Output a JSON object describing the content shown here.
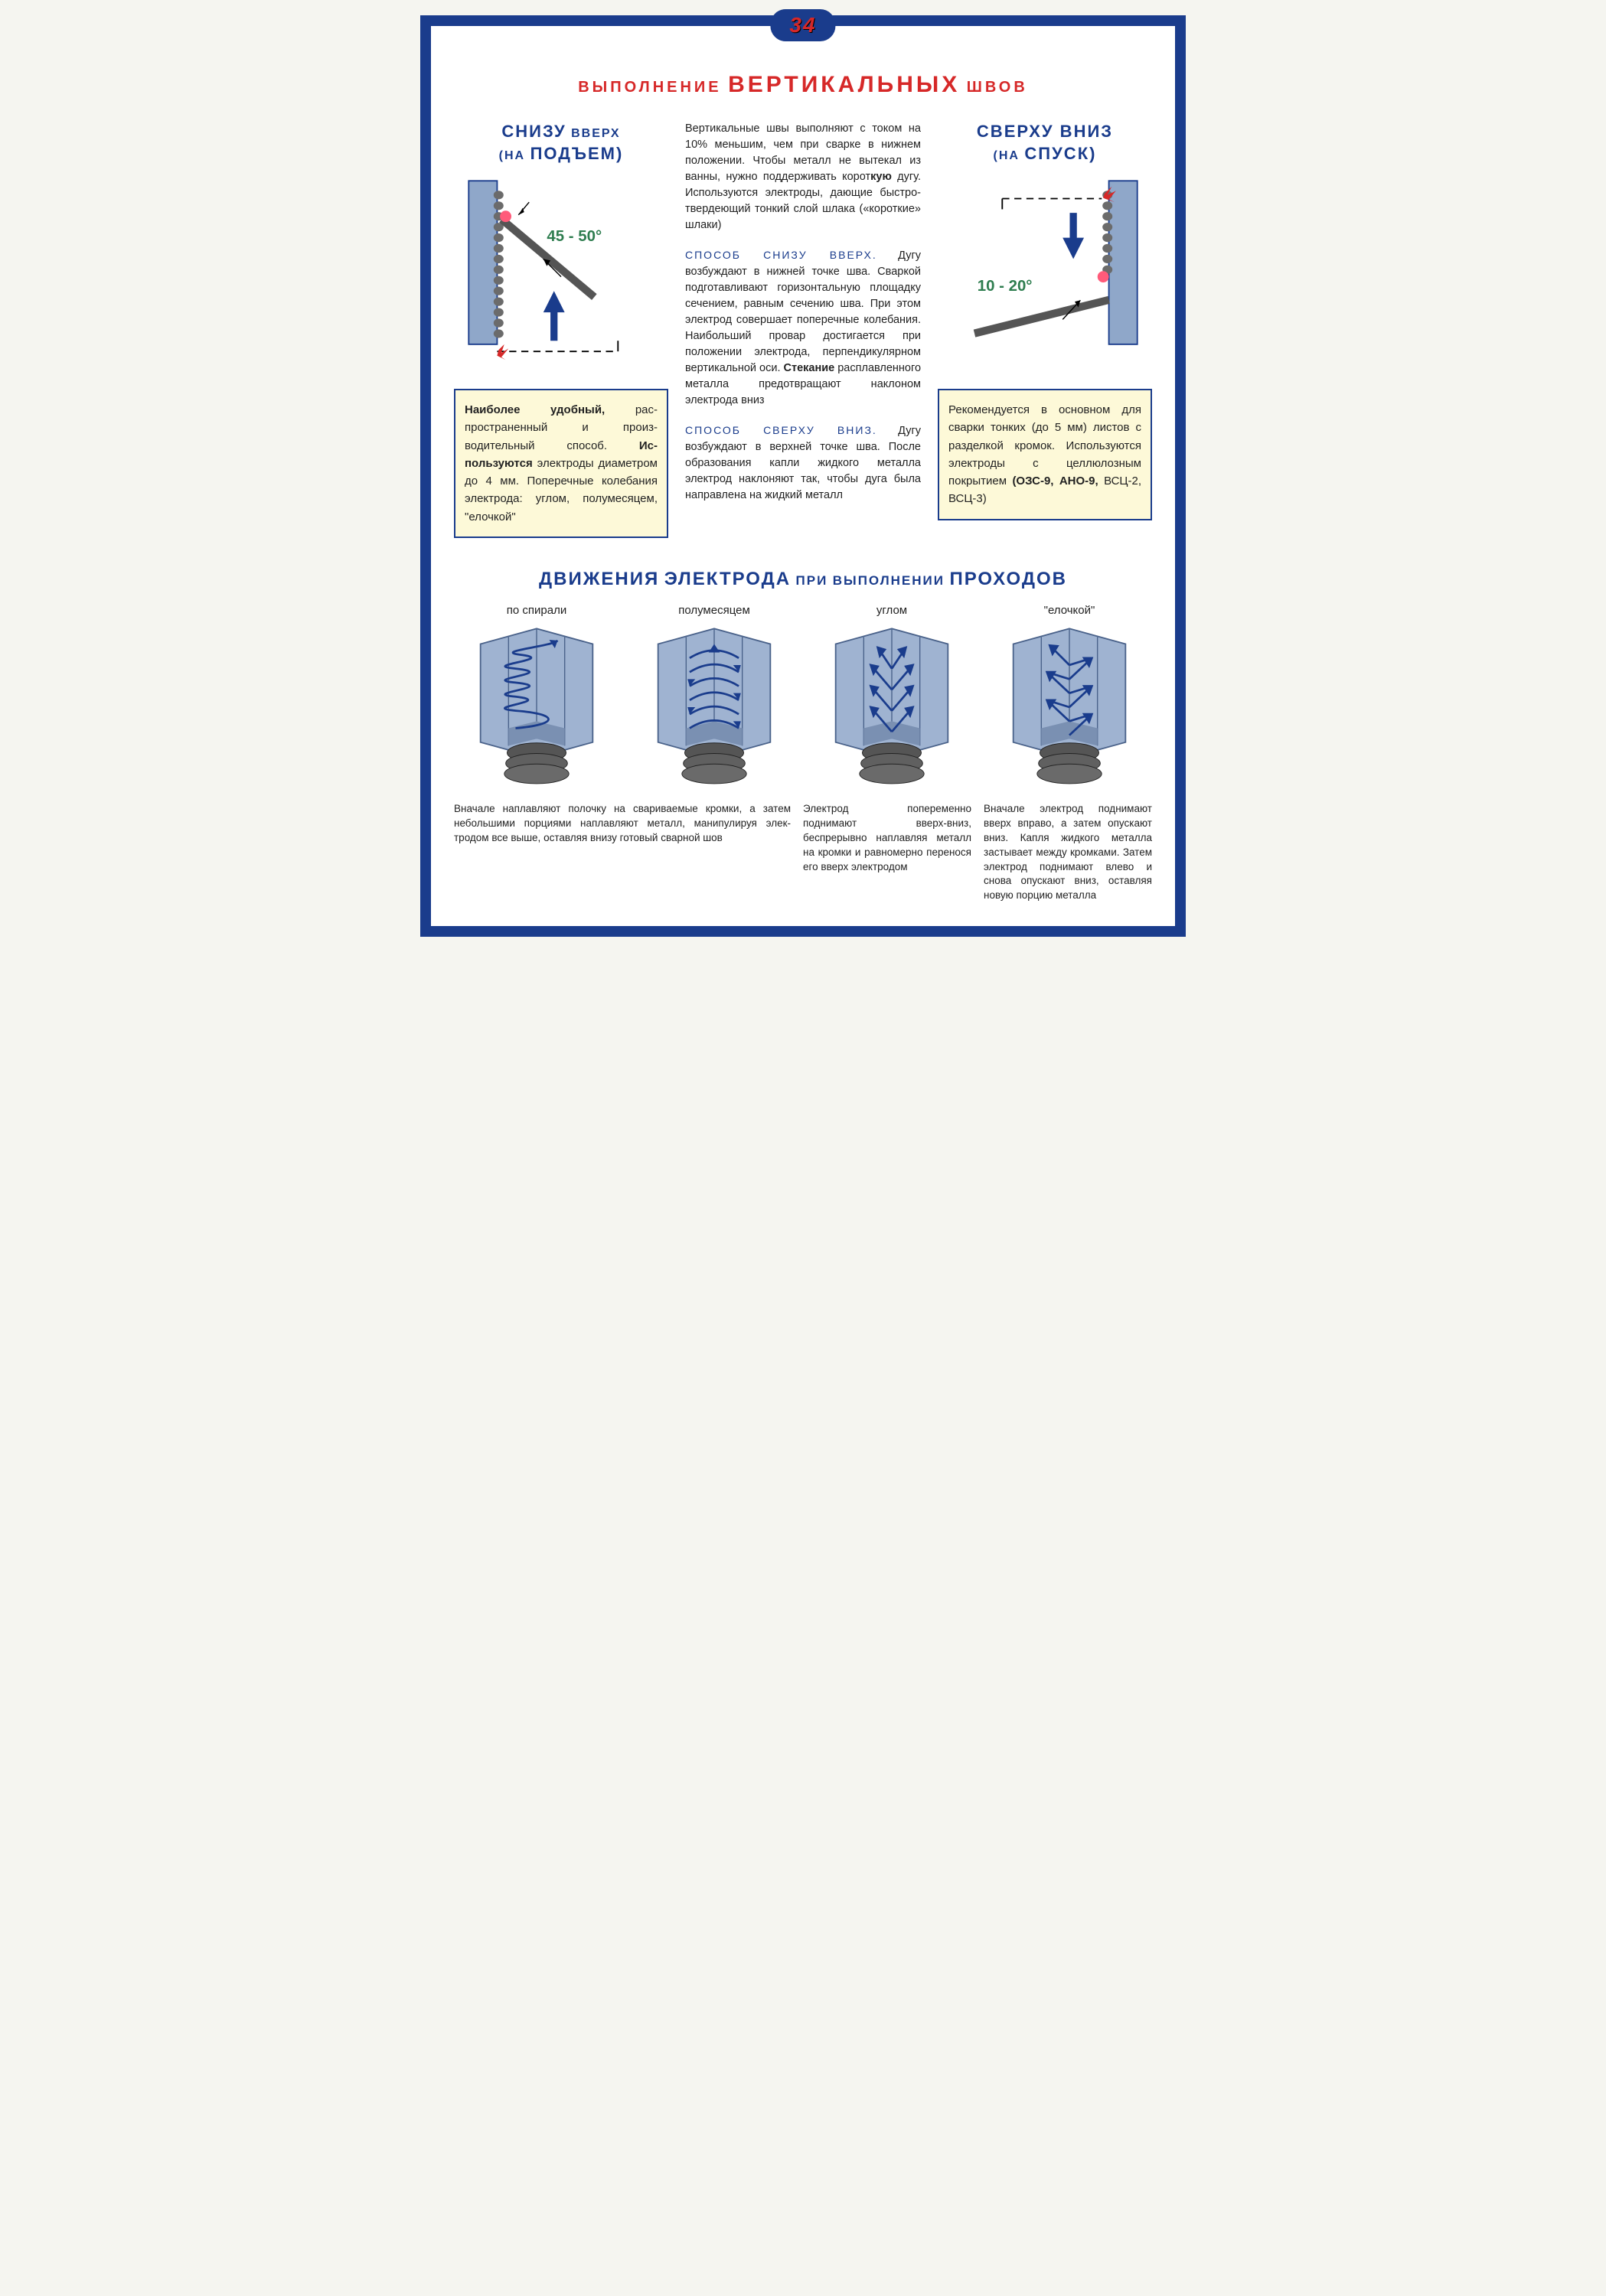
{
  "page_number": "34",
  "title": {
    "w1": "ВЫПОЛНЕНИЕ",
    "w2": "ВЕРТИКАЛЬНЫХ",
    "w3": "ШВОВ"
  },
  "colors": {
    "frame": "#1a3c8c",
    "accent_red": "#d62828",
    "box_bg": "#fdf9d8",
    "steel": "#8fa7c9",
    "steel_dark": "#5a7296",
    "angle_text": "#2e7d4f"
  },
  "left": {
    "heading_l1a": "СНИЗУ",
    "heading_l1b": "ВВЕРХ",
    "heading_l2a": "(НА",
    "heading_l2b": "ПОДЪЕМ)",
    "angle": "45 - 50°",
    "box_html": "<b>Наиболее удобный,</b> рас­пространенный и произ­водительный способ. <b>Ис­пользуются</b> электроды диаметром до 4 мм. По­перечные колебания электрода: углом, полу­месяцем, \"елочкой\""
  },
  "right": {
    "heading_l1": "СВЕРХУ ВНИЗ",
    "heading_l2a": "(НА",
    "heading_l2b": "СПУСК)",
    "angle": "10 - 20°",
    "box_html": "Рекомендуется в основ­ном для сварки тонких (до 5 мм) листов с раз­делкой кромок. Исполь­зуются электроды с цел­люлозным покрытием <b>(ОЗС-9, АНО-9,</b> ВСЦ-2, ВСЦ-3)"
  },
  "center": {
    "p1": "Вертикальные швы выпол­няют с током на 10% мень­шим, чем при сварке в ниж­нем положении. Чтобы ме­талл не вытекал из ванны, нужно поддерживать корот­<b>кую</b> дугу. Используются электроды, дающие быстро­твердеющий тонкий слой шлака («короткие» шлаки)",
    "p2_lead": "СПОСОБ СНИЗУ ВВЕРХ.",
    "p2": "Дугу возбуждают в нижней точке шва. Сваркой подго­тавливают горизонтальную площадку сечением, равным сечению шва. При этом электрод совершает попе­речные колебания. Наиболь­ший провар достигается при положении электрода, пер­пендикулярном вертикальной оси. <b>Стекание</b> расплавлен­ного металла предотвраща­ют наклоном электрода вниз",
    "p3_lead": "СПОСОБ СВЕРХУ ВНИЗ.",
    "p3": "Дугу возбуждают в верхней точке шва. После обра­зования капли жидкого металла электрод нак­лоняют так, чтобы дуга была направлена на жидкий металл"
  },
  "section2": {
    "w1": "ДВИЖЕНИЯ",
    "w2": "ЭЛЕКТРОДА",
    "w3": "ПРИ",
    "w4": "ВЫПОЛНЕНИИ",
    "w5": "ПРОХОДОВ",
    "patterns": [
      {
        "label": "по спирали"
      },
      {
        "label": "полумесяцем"
      },
      {
        "label": "углом"
      },
      {
        "label": "\"елочкой\""
      }
    ],
    "cap1": "Вначале наплавляют полочку на сварива­емые кромки, а затем небольшими порциями наплавляют металл, манипулируя элек­тродом все выше, оставляя внизу готовый сварной шов",
    "cap2": "Электрод поперемен­но поднимают вверх-вниз, беспрерывно наплавляя металл на кромки и равномерно перенося его вверх электродом",
    "cap3": "Вначале электрод под­нимают вверх вправо, а затем опускают вниз. Капля жидкого металла застывает между кром­ками. Затем электрод поднимают влево и снова опускают вниз, оставляя новую порцию металла"
  }
}
